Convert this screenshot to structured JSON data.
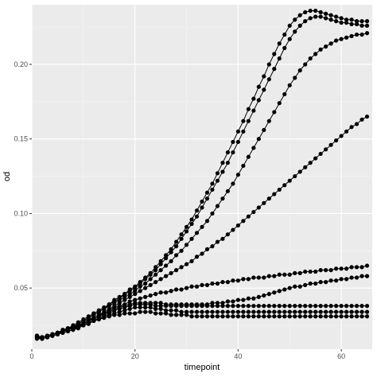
{
  "chart_data": {
    "type": "line",
    "xlabel": "timepoint",
    "ylabel": "od",
    "xlim": [
      0,
      66
    ],
    "ylim": [
      0.009,
      0.24
    ],
    "grid": true,
    "x_ticks": [
      {
        "value": 0,
        "label": "0"
      },
      {
        "value": 20,
        "label": "20"
      },
      {
        "value": 40,
        "label": "40"
      },
      {
        "value": 60,
        "label": "60"
      }
    ],
    "y_ticks": [
      {
        "value": 0.05,
        "label": "0.05"
      },
      {
        "value": 0.1,
        "label": "0.10"
      },
      {
        "value": 0.15,
        "label": "0.15"
      },
      {
        "value": 0.2,
        "label": "0.20"
      }
    ],
    "x": [
      1,
      2,
      3,
      4,
      5,
      6,
      7,
      8,
      9,
      10,
      11,
      12,
      13,
      14,
      15,
      16,
      17,
      18,
      19,
      20,
      21,
      22,
      23,
      24,
      25,
      26,
      27,
      28,
      29,
      30,
      31,
      32,
      33,
      34,
      35,
      36,
      37,
      38,
      39,
      40,
      41,
      42,
      43,
      44,
      45,
      46,
      47,
      48,
      49,
      50,
      51,
      52,
      53,
      54,
      55,
      56,
      57,
      58,
      59,
      60,
      61,
      62,
      63,
      64,
      65
    ],
    "series": [
      {
        "values": [
          0.018,
          0.017,
          0.018,
          0.019,
          0.02,
          0.021,
          0.022,
          0.023,
          0.024,
          0.026,
          0.027,
          0.028,
          0.029,
          0.03,
          0.031,
          0.032,
          0.032,
          0.033,
          0.033,
          0.033,
          0.034,
          0.034,
          0.034,
          0.033,
          0.033,
          0.033,
          0.032,
          0.032,
          0.032,
          0.032,
          0.031,
          0.031,
          0.031,
          0.031,
          0.031,
          0.031,
          0.031,
          0.031,
          0.031,
          0.031,
          0.031,
          0.031,
          0.031,
          0.031,
          0.031,
          0.031,
          0.031,
          0.031,
          0.031,
          0.031,
          0.031,
          0.031,
          0.031,
          0.031,
          0.031,
          0.031,
          0.031,
          0.031,
          0.031,
          0.031,
          0.031,
          0.031,
          0.031,
          0.031,
          0.031
        ]
      },
      {
        "values": [
          0.017,
          0.016,
          0.017,
          0.018,
          0.019,
          0.02,
          0.021,
          0.022,
          0.024,
          0.025,
          0.026,
          0.028,
          0.029,
          0.031,
          0.032,
          0.033,
          0.034,
          0.035,
          0.036,
          0.037,
          0.037,
          0.037,
          0.037,
          0.036,
          0.036,
          0.035,
          0.035,
          0.035,
          0.034,
          0.034,
          0.034,
          0.034,
          0.034,
          0.034,
          0.034,
          0.034,
          0.034,
          0.034,
          0.034,
          0.034,
          0.034,
          0.034,
          0.034,
          0.034,
          0.034,
          0.034,
          0.034,
          0.034,
          0.034,
          0.034,
          0.034,
          0.034,
          0.034,
          0.034,
          0.034,
          0.034,
          0.034,
          0.034,
          0.034,
          0.034,
          0.034,
          0.034,
          0.034,
          0.034,
          0.034
        ]
      },
      {
        "values": [
          0.016,
          0.016,
          0.017,
          0.018,
          0.019,
          0.02,
          0.021,
          0.022,
          0.023,
          0.025,
          0.026,
          0.028,
          0.03,
          0.032,
          0.033,
          0.035,
          0.036,
          0.037,
          0.038,
          0.039,
          0.039,
          0.039,
          0.039,
          0.038,
          0.038,
          0.038,
          0.038,
          0.038,
          0.038,
          0.038,
          0.038,
          0.038,
          0.038,
          0.038,
          0.038,
          0.038,
          0.038,
          0.038,
          0.038,
          0.038,
          0.038,
          0.038,
          0.038,
          0.038,
          0.038,
          0.038,
          0.038,
          0.038,
          0.038,
          0.038,
          0.038,
          0.038,
          0.038,
          0.038,
          0.038,
          0.038,
          0.038,
          0.038,
          0.038,
          0.038,
          0.038,
          0.038,
          0.038,
          0.038,
          0.038
        ]
      },
      {
        "values": [
          0.017,
          0.017,
          0.018,
          0.019,
          0.02,
          0.021,
          0.022,
          0.023,
          0.025,
          0.026,
          0.028,
          0.029,
          0.031,
          0.033,
          0.034,
          0.036,
          0.037,
          0.038,
          0.039,
          0.04,
          0.04,
          0.04,
          0.04,
          0.04,
          0.04,
          0.039,
          0.039,
          0.039,
          0.039,
          0.039,
          0.039,
          0.039,
          0.039,
          0.039,
          0.04,
          0.04,
          0.04,
          0.041,
          0.041,
          0.042,
          0.042,
          0.043,
          0.043,
          0.044,
          0.045,
          0.046,
          0.047,
          0.048,
          0.049,
          0.05,
          0.051,
          0.051,
          0.052,
          0.053,
          0.053,
          0.054,
          0.054,
          0.055,
          0.055,
          0.056,
          0.056,
          0.057,
          0.057,
          0.058,
          0.058
        ]
      },
      {
        "values": [
          0.018,
          0.017,
          0.018,
          0.019,
          0.02,
          0.021,
          0.023,
          0.024,
          0.025,
          0.027,
          0.029,
          0.03,
          0.032,
          0.033,
          0.035,
          0.037,
          0.038,
          0.039,
          0.041,
          0.042,
          0.043,
          0.044,
          0.045,
          0.046,
          0.047,
          0.047,
          0.048,
          0.049,
          0.049,
          0.05,
          0.051,
          0.051,
          0.052,
          0.052,
          0.053,
          0.053,
          0.054,
          0.054,
          0.055,
          0.055,
          0.056,
          0.056,
          0.057,
          0.057,
          0.057,
          0.058,
          0.058,
          0.059,
          0.059,
          0.059,
          0.06,
          0.06,
          0.061,
          0.061,
          0.061,
          0.062,
          0.062,
          0.062,
          0.063,
          0.063,
          0.063,
          0.064,
          0.064,
          0.064,
          0.065
        ]
      },
      {
        "values": [
          0.017,
          0.016,
          0.017,
          0.018,
          0.019,
          0.021,
          0.022,
          0.023,
          0.025,
          0.026,
          0.028,
          0.03,
          0.032,
          0.034,
          0.036,
          0.038,
          0.04,
          0.042,
          0.044,
          0.046,
          0.048,
          0.05,
          0.052,
          0.054,
          0.056,
          0.058,
          0.06,
          0.062,
          0.064,
          0.066,
          0.068,
          0.071,
          0.073,
          0.076,
          0.078,
          0.081,
          0.083,
          0.086,
          0.089,
          0.092,
          0.095,
          0.098,
          0.101,
          0.104,
          0.107,
          0.11,
          0.113,
          0.116,
          0.119,
          0.122,
          0.125,
          0.128,
          0.131,
          0.134,
          0.137,
          0.14,
          0.143,
          0.146,
          0.149,
          0.152,
          0.155,
          0.158,
          0.16,
          0.163,
          0.165
        ]
      },
      {
        "values": [
          0.018,
          0.017,
          0.018,
          0.019,
          0.02,
          0.021,
          0.023,
          0.024,
          0.026,
          0.028,
          0.03,
          0.032,
          0.034,
          0.036,
          0.038,
          0.04,
          0.042,
          0.044,
          0.046,
          0.048,
          0.051,
          0.053,
          0.056,
          0.059,
          0.062,
          0.065,
          0.068,
          0.072,
          0.075,
          0.079,
          0.083,
          0.087,
          0.091,
          0.095,
          0.1,
          0.105,
          0.11,
          0.115,
          0.12,
          0.126,
          0.132,
          0.138,
          0.144,
          0.15,
          0.156,
          0.162,
          0.168,
          0.174,
          0.18,
          0.186,
          0.191,
          0.196,
          0.2,
          0.204,
          0.207,
          0.21,
          0.212,
          0.214,
          0.216,
          0.217,
          0.218,
          0.219,
          0.22,
          0.22,
          0.221
        ]
      },
      {
        "values": [
          0.017,
          0.016,
          0.017,
          0.018,
          0.019,
          0.021,
          0.022,
          0.024,
          0.026,
          0.028,
          0.03,
          0.032,
          0.034,
          0.036,
          0.039,
          0.041,
          0.043,
          0.046,
          0.048,
          0.05,
          0.053,
          0.056,
          0.059,
          0.062,
          0.066,
          0.07,
          0.074,
          0.078,
          0.083,
          0.088,
          0.093,
          0.098,
          0.104,
          0.11,
          0.116,
          0.122,
          0.128,
          0.134,
          0.141,
          0.148,
          0.155,
          0.162,
          0.169,
          0.176,
          0.183,
          0.19,
          0.197,
          0.204,
          0.211,
          0.217,
          0.222,
          0.226,
          0.229,
          0.231,
          0.232,
          0.232,
          0.231,
          0.23,
          0.229,
          0.228,
          0.228,
          0.227,
          0.227,
          0.226,
          0.226
        ]
      },
      {
        "values": [
          0.018,
          0.017,
          0.018,
          0.019,
          0.02,
          0.022,
          0.023,
          0.025,
          0.027,
          0.029,
          0.031,
          0.033,
          0.035,
          0.037,
          0.039,
          0.042,
          0.044,
          0.046,
          0.049,
          0.051,
          0.054,
          0.057,
          0.06,
          0.064,
          0.068,
          0.072,
          0.076,
          0.081,
          0.086,
          0.091,
          0.096,
          0.102,
          0.108,
          0.114,
          0.12,
          0.127,
          0.134,
          0.141,
          0.148,
          0.155,
          0.162,
          0.17,
          0.177,
          0.185,
          0.192,
          0.2,
          0.207,
          0.214,
          0.22,
          0.226,
          0.23,
          0.233,
          0.235,
          0.236,
          0.236,
          0.235,
          0.234,
          0.233,
          0.232,
          0.231,
          0.23,
          0.23,
          0.229,
          0.229,
          0.229
        ]
      }
    ]
  }
}
